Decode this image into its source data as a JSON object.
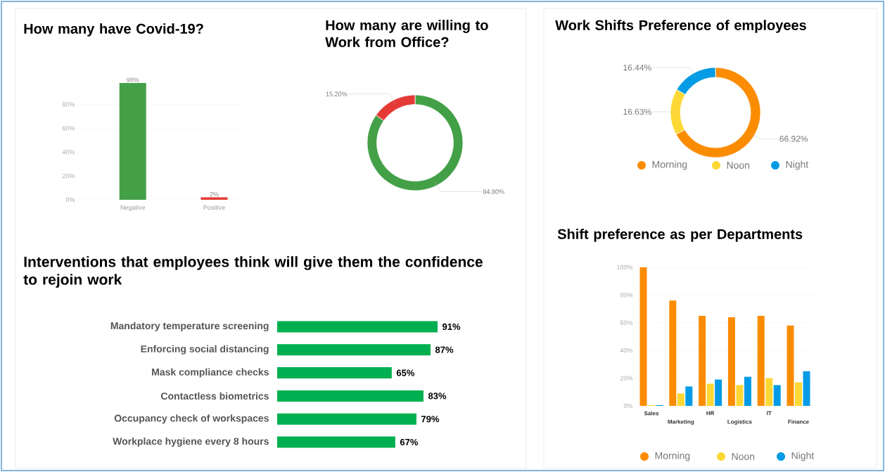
{
  "chart_data": [
    {
      "type": "bar",
      "title": "How many have Covid-19?",
      "categories": [
        "Negative",
        "Positive"
      ],
      "values": [
        98,
        2
      ],
      "colors": [
        "#43a047",
        "#e53935"
      ],
      "value_labels": [
        "98%",
        "2%"
      ],
      "ylim": [
        0,
        98
      ],
      "yticks": [
        {
          "value": 0,
          "label": "0%"
        },
        {
          "value": 20,
          "label": "20%"
        },
        {
          "value": 40,
          "label": "40%"
        },
        {
          "value": 60,
          "label": "60%"
        },
        {
          "value": 80,
          "label": "80%"
        }
      ],
      "grid": "y"
    },
    {
      "type": "donut",
      "title": "How many are willing to Work from Office?",
      "categories": [
        null,
        null
      ],
      "values": [
        84.8,
        15.2
      ],
      "colors": [
        "#43a047",
        "#e53935"
      ],
      "value_labels": [
        "84.80%",
        "15.20%"
      ]
    },
    {
      "type": "donut",
      "title": "Work Shifts Preference of employees",
      "categories": [
        "Morning",
        "Noon",
        "Night"
      ],
      "values": [
        66.92,
        16.63,
        16.44
      ],
      "colors": [
        "#fb8c00",
        "#fdd835",
        "#039be5"
      ],
      "value_labels": [
        "66.92%",
        "16.63%",
        "16.44%"
      ],
      "legend": "bottom"
    },
    {
      "type": "bar",
      "title": "Shift preference as per Departments",
      "categories": [
        "Sales",
        "Marketing",
        "HR",
        "Logistics",
        "IT",
        "Finance"
      ],
      "series": [
        {
          "name": "Morning",
          "color": "#fb8c00",
          "values": [
            100,
            76,
            65,
            64,
            65,
            58
          ]
        },
        {
          "name": "Noon",
          "color": "#fdd835",
          "values": [
            0.5,
            9,
            16,
            15,
            20,
            17
          ]
        },
        {
          "name": "Night",
          "color": "#039be5",
          "values": [
            0.5,
            14,
            19,
            21,
            15,
            25
          ]
        }
      ],
      "ylim": [
        0,
        100
      ],
      "yticks": [
        {
          "value": 0,
          "label": "0%"
        },
        {
          "value": 20,
          "label": "20%"
        },
        {
          "value": 40,
          "label": "40%"
        },
        {
          "value": 60,
          "label": "60%"
        },
        {
          "value": 80,
          "label": "80%"
        },
        {
          "value": 100,
          "label": "100%"
        }
      ],
      "grid": "y",
      "legend": "bottom"
    },
    {
      "type": "bar",
      "orientation": "horizontal",
      "title": "Interventions that employees think will give them the confidence to rejoin work",
      "categories": [
        "Mandatory temperature screening",
        "Enforcing social distancing",
        "Mask compliance checks",
        "Contactless biometrics",
        "Occupancy check of workspaces",
        "Workplace hygiene every 8 hours"
      ],
      "values": [
        91,
        87,
        65,
        83,
        79,
        67
      ],
      "color": "#00b050",
      "value_labels": [
        "91%",
        "87%",
        "65%",
        "83%",
        "79%",
        "67%"
      ]
    }
  ]
}
